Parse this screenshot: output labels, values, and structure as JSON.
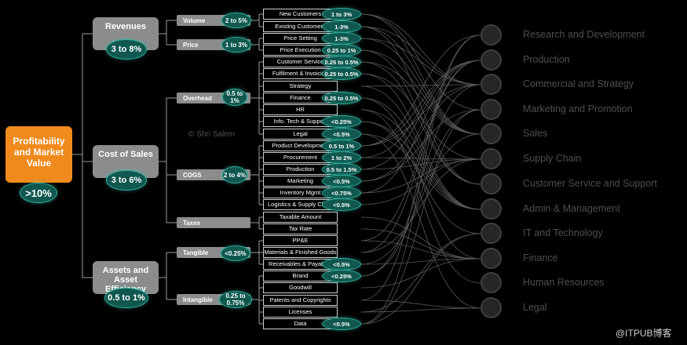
{
  "root": {
    "label": "Profitability and Market Value",
    "badge": ">10%"
  },
  "level1": [
    {
      "label": "Revenues",
      "badge": "3 to 8%"
    },
    {
      "label": "Cost of Sales",
      "badge": "3 to 6%"
    },
    {
      "label": "Assets and Asset Efficiency",
      "badge": "0.5 to 1%"
    }
  ],
  "level2": [
    {
      "label": "Volume",
      "badge": "2 to 5%"
    },
    {
      "label": "Price",
      "badge": "1 to 3%"
    },
    {
      "label": "Overhead",
      "badge": "0.5 to 1%"
    },
    {
      "label": "COGS",
      "badge": "2 to 4%"
    },
    {
      "label": "Taxes",
      "badge": ""
    },
    {
      "label": "Tangible",
      "badge": "<0.25%"
    },
    {
      "label": "Intangible",
      "badge": "0.25 to 0.75%"
    }
  ],
  "leaves": [
    {
      "label": "New Customers",
      "badge": "1 to 3%"
    },
    {
      "label": "Existing Customers",
      "badge": "1-3%"
    },
    {
      "label": "Price Setting",
      "badge": "1-3%"
    },
    {
      "label": "Price Execution",
      "badge": "0.25 to 1%"
    },
    {
      "label": "Customer Service",
      "badge": "0.25 to 0.5%"
    },
    {
      "label": "Fulfilment & Invoicing",
      "badge": "0.25 to 0.5%"
    },
    {
      "label": "Strategy",
      "badge": ""
    },
    {
      "label": "Finance",
      "badge": "0.25 to 0.5%"
    },
    {
      "label": "HR",
      "badge": ""
    },
    {
      "label": "Info. Tech & Support",
      "badge": "<0.25%"
    },
    {
      "label": "Legal",
      "badge": "<0.5%"
    },
    {
      "label": "Product Development",
      "badge": "0.5 to 1%"
    },
    {
      "label": "Procurement",
      "badge": "1 to 2%"
    },
    {
      "label": "Production",
      "badge": "0.5 to 1.5%"
    },
    {
      "label": "Marketing",
      "badge": "<0.5%"
    },
    {
      "label": "Inventory Mgmt",
      "badge": "<0.75%"
    },
    {
      "label": "Logistics & Supply Chain",
      "badge": "<0.5%"
    },
    {
      "label": "Taxable Amount",
      "badge": ""
    },
    {
      "label": "Tax Rate",
      "badge": ""
    },
    {
      "label": "PP&E",
      "badge": ""
    },
    {
      "label": "Materials & Finished Goods",
      "badge": ""
    },
    {
      "label": "Receivables & Payables",
      "badge": "<0.5%"
    },
    {
      "label": "Brand",
      "badge": "<0.25%"
    },
    {
      "label": "Goodwill",
      "badge": ""
    },
    {
      "label": "Patents and Copyrights",
      "badge": ""
    },
    {
      "label": "Licenses",
      "badge": ""
    },
    {
      "label": "Data",
      "badge": "<0.5%"
    }
  ],
  "functions": [
    "Research and Development",
    "Production",
    "Commercial and Strategy",
    "Marketing and Promotion",
    "Sales",
    "Supply Chain",
    "Customer Service and Support",
    "Admin & Management",
    "IT and Technology",
    "Finance",
    "Human Resources",
    "Legal"
  ],
  "copyright": "© Shri Salem",
  "watermark": "@ITPUB博客",
  "colors": {
    "root": "#f08a1c",
    "node": "#8c8c8c",
    "badge_fill": "#10584f",
    "badge_border": "#2fa99a",
    "function_text": "#4e4e4e"
  }
}
